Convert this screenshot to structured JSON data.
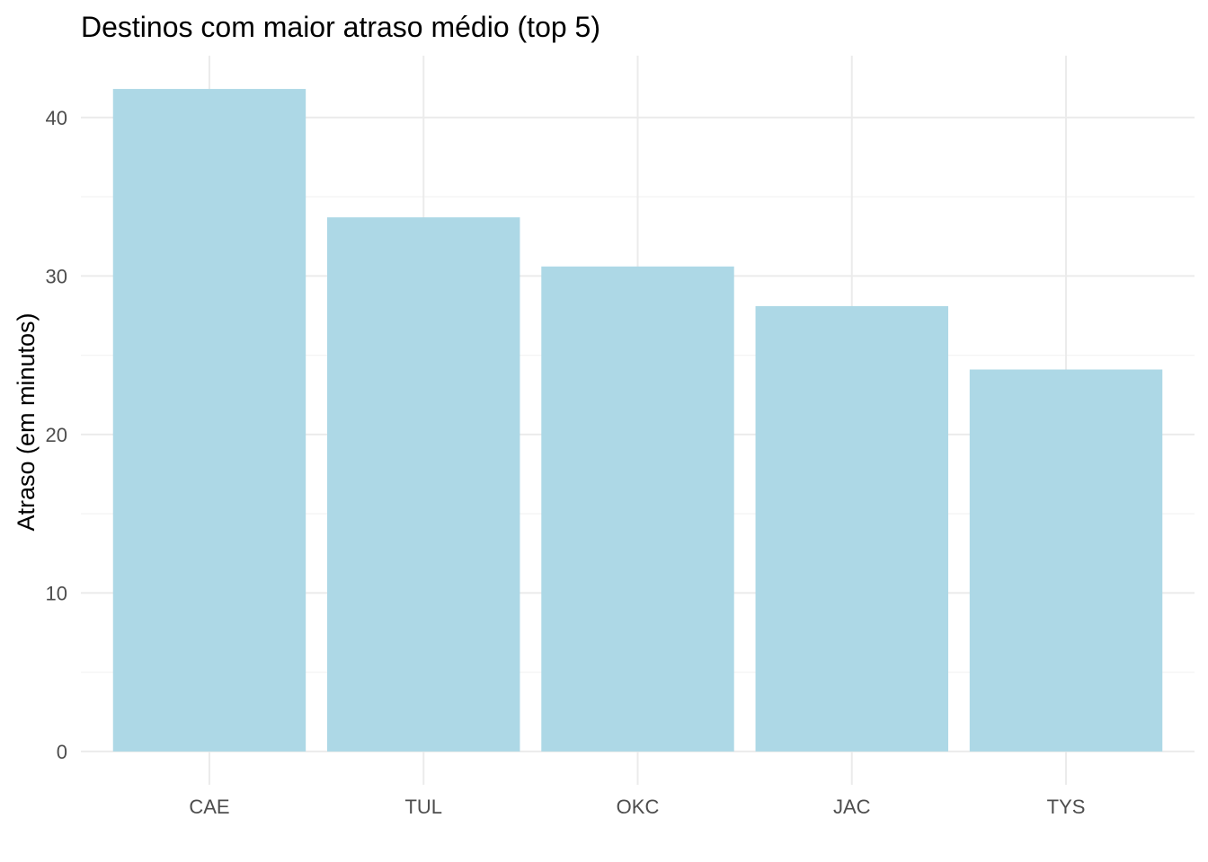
{
  "chart_data": {
    "type": "bar",
    "title": "Destinos com maior atraso médio (top 5)",
    "xlabel": "",
    "ylabel": "Atraso (em minutos)",
    "categories": [
      "CAE",
      "TUL",
      "OKC",
      "JAC",
      "TYS"
    ],
    "values": [
      41.8,
      33.7,
      30.6,
      28.1,
      24.1
    ],
    "ylim": [
      -2.1,
      43.9
    ],
    "yticks": [
      0,
      10,
      20,
      30,
      40
    ],
    "ytick_labels": [
      "0",
      "10",
      "20",
      "30",
      "40"
    ],
    "grid": true,
    "legend": "none",
    "bar_color": "#ADD8E6"
  }
}
